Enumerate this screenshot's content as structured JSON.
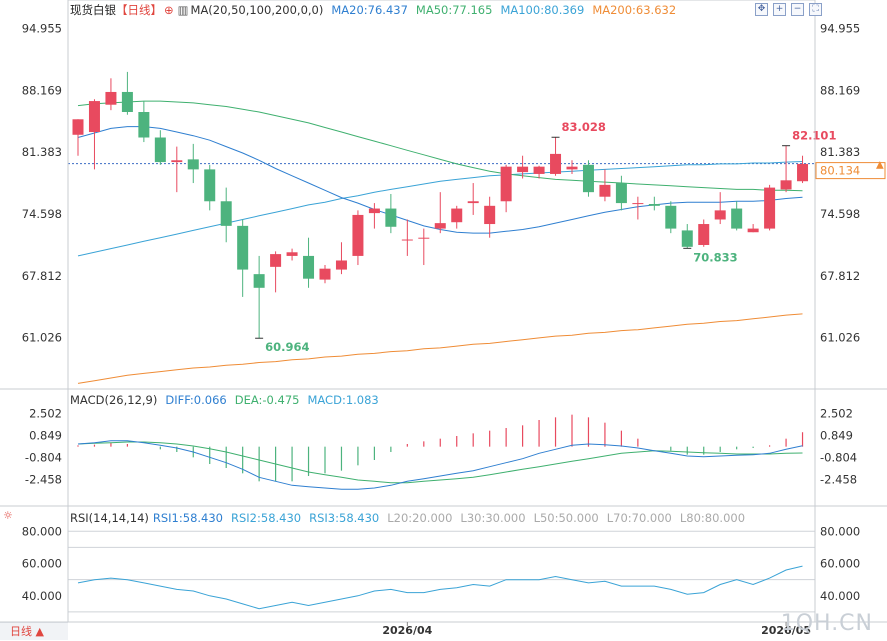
{
  "header": {
    "title": "现货白银",
    "period_tag": "【日线】",
    "ma_label": "MA(20,50,100,200,0,0)",
    "ma20": "MA20:76.437",
    "ma50": "MA50:77.165",
    "ma100": "MA100:80.369",
    "ma200": "MA200:63.632"
  },
  "macd_header": {
    "label": "MACD(26,12,9)",
    "diff": "DIFF:0.066",
    "dea": "DEA:-0.475",
    "macd": "MACD:1.083"
  },
  "rsi_header": {
    "label": "RSI(14,14,14)",
    "rsi1": "RSI1:58.430",
    "rsi2": "RSI2:58.430",
    "rsi3": "RSI3:58.430",
    "l20": "L20:20.000",
    "l30": "L30:30.000",
    "l50": "L50:50.000",
    "l70": "L70:70.000",
    "l80": "L80:80.000"
  },
  "period_button": "日线 ▲",
  "watermark": "1QH.CN",
  "colors": {
    "up": "#e84a5f",
    "down": "#4db37e",
    "ma20": "#2f7fd0",
    "ma50": "#3fb06f",
    "ma100": "#3aa3d6",
    "ma200": "#ef8c36",
    "text": "#333333",
    "accent": "#e0463f"
  },
  "chart_data": [
    {
      "type": "candlestick",
      "yticks": [
        "94.955",
        "88.169",
        "81.383",
        "74.598",
        "67.812",
        "61.026"
      ],
      "ylim": [
        55.5,
        95.9
      ],
      "current_price": "80.134",
      "x_labels": [
        {
          "index": 20,
          "label": "2026/04"
        },
        {
          "index": 43,
          "label": "2026/05"
        }
      ],
      "annotations": [
        {
          "index": 11,
          "value": 60.964,
          "label": "60.964",
          "position": "below"
        },
        {
          "index": 29,
          "value": 83.028,
          "label": "83.028",
          "position": "above"
        },
        {
          "index": 37,
          "value": 70.833,
          "label": "70.833",
          "position": "below"
        },
        {
          "index": 43,
          "value": 82.101,
          "label": "82.101",
          "position": "above"
        }
      ],
      "ohlc": [
        [
          83.3,
          85.0,
          81.0,
          85.0
        ],
        [
          83.6,
          87.2,
          79.5,
          87.0
        ],
        [
          86.6,
          89.5,
          86.0,
          88.0
        ],
        [
          88.0,
          90.2,
          85.5,
          85.8
        ],
        [
          85.8,
          87.0,
          82.5,
          83.0
        ],
        [
          83.0,
          83.8,
          80.0,
          80.3
        ],
        [
          80.3,
          82.0,
          77.0,
          80.5
        ],
        [
          80.6,
          82.3,
          78.0,
          79.5
        ],
        [
          79.5,
          80.0,
          75.0,
          76.0
        ],
        [
          76.0,
          77.5,
          71.5,
          73.3
        ],
        [
          73.3,
          74.0,
          65.5,
          68.5
        ],
        [
          68.0,
          70.0,
          60.96,
          66.5
        ],
        [
          68.8,
          70.5,
          66.0,
          70.2
        ],
        [
          70.0,
          70.8,
          69.5,
          70.4
        ],
        [
          70.0,
          72.0,
          66.5,
          67.5
        ],
        [
          67.4,
          69.0,
          67.0,
          68.6
        ],
        [
          68.5,
          71.5,
          68.0,
          69.5
        ],
        [
          70.0,
          75.0,
          69.0,
          74.5
        ],
        [
          74.7,
          75.8,
          73.0,
          75.2
        ],
        [
          75.2,
          76.8,
          72.5,
          73.2
        ],
        [
          71.8,
          74.0,
          70.0,
          71.8
        ],
        [
          72.0,
          73.0,
          69.0,
          72.0
        ],
        [
          73.0,
          77.0,
          72.5,
          73.6
        ],
        [
          73.7,
          75.5,
          73.0,
          75.2
        ],
        [
          75.8,
          78.0,
          74.5,
          76.0
        ],
        [
          73.5,
          76.5,
          72.0,
          75.5
        ],
        [
          76.0,
          80.0,
          74.8,
          79.8
        ],
        [
          79.2,
          81.0,
          78.5,
          79.8
        ],
        [
          79.0,
          79.9,
          78.5,
          79.8
        ],
        [
          79.0,
          83.03,
          78.8,
          81.2
        ],
        [
          79.5,
          80.5,
          79.0,
          79.8
        ],
        [
          80.0,
          80.5,
          76.5,
          77.0
        ],
        [
          76.5,
          79.5,
          76.0,
          77.8
        ],
        [
          78.0,
          78.8,
          75.0,
          75.8
        ],
        [
          75.8,
          76.5,
          74.0,
          75.8
        ],
        [
          75.7,
          76.5,
          75.0,
          75.5
        ],
        [
          75.5,
          76.0,
          72.5,
          73.0
        ],
        [
          72.8,
          73.5,
          70.83,
          71.0
        ],
        [
          71.2,
          74.0,
          71.0,
          73.5
        ],
        [
          74.0,
          77.0,
          73.5,
          75.0
        ],
        [
          75.2,
          76.0,
          72.8,
          73.0
        ],
        [
          72.6,
          73.5,
          72.6,
          73.0
        ],
        [
          73.0,
          77.8,
          72.8,
          77.5
        ],
        [
          77.3,
          82.1,
          77.0,
          78.3
        ],
        [
          78.2,
          81.0,
          78.0,
          80.1
        ]
      ],
      "ma20": [
        83.0,
        83.5,
        84.0,
        84.2,
        84.2,
        84.0,
        83.6,
        83.2,
        82.7,
        82.0,
        81.3,
        80.5,
        79.6,
        78.8,
        78.0,
        77.2,
        76.4,
        75.8,
        75.1,
        74.5,
        73.9,
        73.3,
        72.9,
        72.6,
        72.5,
        72.5,
        72.7,
        72.9,
        73.2,
        73.6,
        74.0,
        74.4,
        74.8,
        75.1,
        75.4,
        75.6,
        75.8,
        75.9,
        75.9,
        75.9,
        76.0,
        76.0,
        76.1,
        76.3,
        76.437
      ],
      "ma50": [
        86.5,
        86.7,
        86.8,
        86.9,
        87.0,
        87.0,
        86.9,
        86.8,
        86.6,
        86.4,
        86.1,
        85.8,
        85.4,
        85.0,
        84.6,
        84.1,
        83.6,
        83.1,
        82.6,
        82.1,
        81.6,
        81.1,
        80.6,
        80.1,
        79.7,
        79.3,
        79.0,
        78.8,
        78.6,
        78.4,
        78.3,
        78.2,
        78.1,
        78.0,
        77.9,
        77.8,
        77.7,
        77.6,
        77.5,
        77.4,
        77.3,
        77.3,
        77.2,
        77.2,
        77.165
      ],
      "ma100": [
        70.0,
        70.4,
        70.8,
        71.2,
        71.6,
        72.0,
        72.4,
        72.8,
        73.2,
        73.6,
        74.0,
        74.4,
        74.8,
        75.2,
        75.6,
        75.9,
        76.3,
        76.6,
        77.0,
        77.3,
        77.6,
        77.9,
        78.2,
        78.4,
        78.6,
        78.8,
        78.9,
        79.0,
        79.1,
        79.2,
        79.3,
        79.4,
        79.5,
        79.6,
        79.7,
        79.8,
        79.9,
        80.0,
        80.0,
        80.1,
        80.1,
        80.2,
        80.2,
        80.3,
        80.369
      ],
      "ma200": [
        56.0,
        56.3,
        56.6,
        56.9,
        57.1,
        57.3,
        57.5,
        57.7,
        57.8,
        58.0,
        58.1,
        58.3,
        58.4,
        58.6,
        58.7,
        58.9,
        59.0,
        59.2,
        59.3,
        59.5,
        59.6,
        59.8,
        59.9,
        60.1,
        60.3,
        60.4,
        60.6,
        60.8,
        61.0,
        61.2,
        61.3,
        61.5,
        61.6,
        61.8,
        61.9,
        62.1,
        62.3,
        62.5,
        62.6,
        62.8,
        62.9,
        63.1,
        63.3,
        63.5,
        63.632
      ]
    },
    {
      "type": "macd",
      "yticks": [
        "2.502",
        "0.849",
        "-0.804",
        "-2.458"
      ],
      "ylim": [
        -4.0,
        3.2
      ],
      "diff": [
        0.2,
        0.3,
        0.45,
        0.45,
        0.3,
        0.1,
        -0.1,
        -0.4,
        -0.8,
        -1.2,
        -1.7,
        -2.3,
        -2.6,
        -2.9,
        -3.0,
        -3.1,
        -3.2,
        -3.2,
        -3.1,
        -2.9,
        -2.6,
        -2.4,
        -2.2,
        -2.0,
        -1.8,
        -1.5,
        -1.2,
        -0.9,
        -0.5,
        -0.2,
        0.1,
        0.2,
        0.15,
        0.05,
        -0.1,
        -0.3,
        -0.5,
        -0.7,
        -0.75,
        -0.7,
        -0.65,
        -0.6,
        -0.5,
        -0.2,
        0.066
      ],
      "dea": [
        0.2,
        0.25,
        0.3,
        0.35,
        0.35,
        0.3,
        0.2,
        0.05,
        -0.15,
        -0.4,
        -0.7,
        -1.0,
        -1.3,
        -1.6,
        -1.9,
        -2.1,
        -2.3,
        -2.5,
        -2.6,
        -2.7,
        -2.7,
        -2.6,
        -2.5,
        -2.4,
        -2.3,
        -2.1,
        -1.9,
        -1.7,
        -1.5,
        -1.3,
        -1.1,
        -0.9,
        -0.7,
        -0.5,
        -0.4,
        -0.3,
        -0.35,
        -0.4,
        -0.45,
        -0.5,
        -0.55,
        -0.55,
        -0.55,
        -0.5,
        -0.475
      ],
      "macd": [
        0.1,
        0.15,
        0.3,
        0.2,
        0.0,
        -0.2,
        -0.4,
        -0.8,
        -1.3,
        -1.6,
        -2.0,
        -2.6,
        -2.6,
        -2.6,
        -2.2,
        -2.0,
        -1.8,
        -1.4,
        -1.0,
        -0.4,
        0.2,
        0.4,
        0.6,
        0.8,
        1.0,
        1.2,
        1.4,
        1.6,
        2.0,
        2.2,
        2.4,
        2.2,
        1.8,
        1.2,
        0.6,
        0.0,
        -0.3,
        -0.6,
        -0.6,
        -0.4,
        -0.2,
        -0.1,
        0.1,
        0.6,
        1.083
      ]
    },
    {
      "type": "line",
      "yticks": [
        "80.000",
        "60.000",
        "40.000"
      ],
      "ylim": [
        25,
        87
      ],
      "levels": [
        20,
        30,
        50,
        70,
        80
      ],
      "rsi": [
        48,
        50,
        51,
        50,
        48,
        46,
        44,
        43,
        40,
        38,
        35,
        32,
        34,
        36,
        34,
        36,
        38,
        40,
        43,
        44,
        42,
        42,
        44,
        45,
        47,
        46,
        50,
        50,
        50,
        52,
        50,
        48,
        49,
        46,
        46,
        46,
        44,
        41,
        42,
        47,
        50,
        47,
        51,
        56,
        58.43
      ]
    }
  ]
}
